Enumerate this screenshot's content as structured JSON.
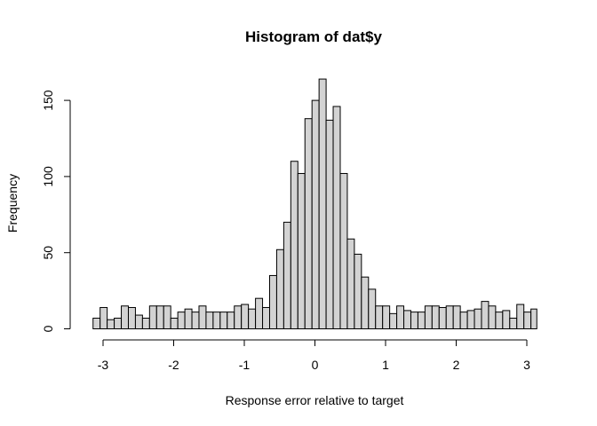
{
  "chart_data": {
    "type": "bar",
    "title": "Histogram of dat$y",
    "xlabel": "Response error relative to target",
    "ylabel": "Frequency",
    "xlim": [
      -3.2,
      3.2
    ],
    "ylim": [
      0,
      165
    ],
    "bin_start": -3.1416,
    "bin_width": 0.1,
    "values": [
      7,
      14,
      6,
      7,
      15,
      14,
      9,
      7,
      15,
      15,
      15,
      7,
      11,
      13,
      11,
      15,
      11,
      11,
      11,
      11,
      15,
      16,
      13,
      20,
      14,
      35,
      52,
      70,
      110,
      102,
      138,
      150,
      164,
      137,
      146,
      102,
      59,
      49,
      34,
      26,
      15,
      15,
      10,
      15,
      12,
      11,
      11,
      15,
      15,
      14,
      15,
      15,
      11,
      12,
      13,
      18,
      15,
      11,
      12,
      7,
      16,
      11,
      13,
      1
    ],
    "x_ticks": [
      -3,
      -2,
      -1,
      0,
      1,
      2,
      3
    ],
    "x_tick_labels": [
      "-3",
      "-2",
      "-1",
      "0",
      "1",
      "2",
      "3"
    ],
    "y_ticks": [
      0,
      50,
      100,
      150
    ],
    "y_tick_labels": [
      "0",
      "50",
      "100",
      "150"
    ]
  }
}
